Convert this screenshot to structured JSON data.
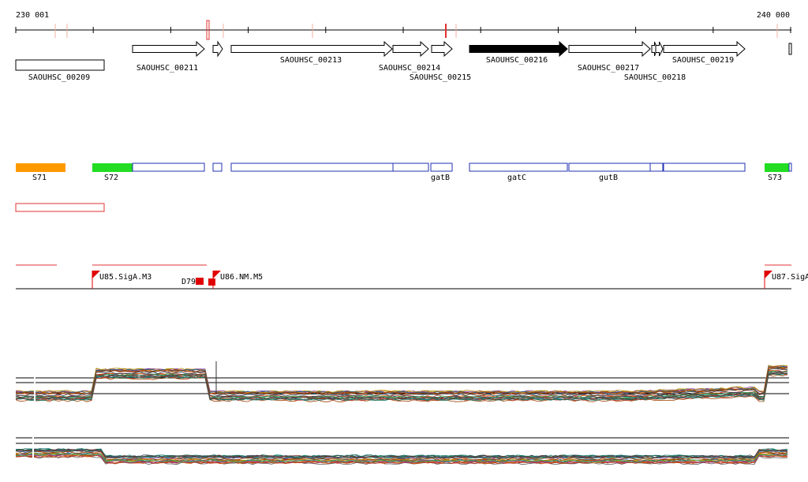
{
  "ruler": {
    "start": "230 001",
    "end": "240 000"
  },
  "genes": [
    "SAOUHSC_00209",
    "SAOUHSC_00211",
    "SAOUHSC_00213",
    "SAOUHSC_00214",
    "SAOUHSC_00215",
    "SAOUHSC_00216",
    "SAOUHSC_00217",
    "SAOUHSC_00218",
    "SAOUHSC_00219"
  ],
  "segments": [
    "S71",
    "S72",
    "gatB",
    "gatC",
    "gutB",
    "S73"
  ],
  "promoters": [
    "U85.SigA.M3",
    "U86.NM.M5",
    "U87.SigA"
  ],
  "terminators": [
    "D79"
  ]
}
